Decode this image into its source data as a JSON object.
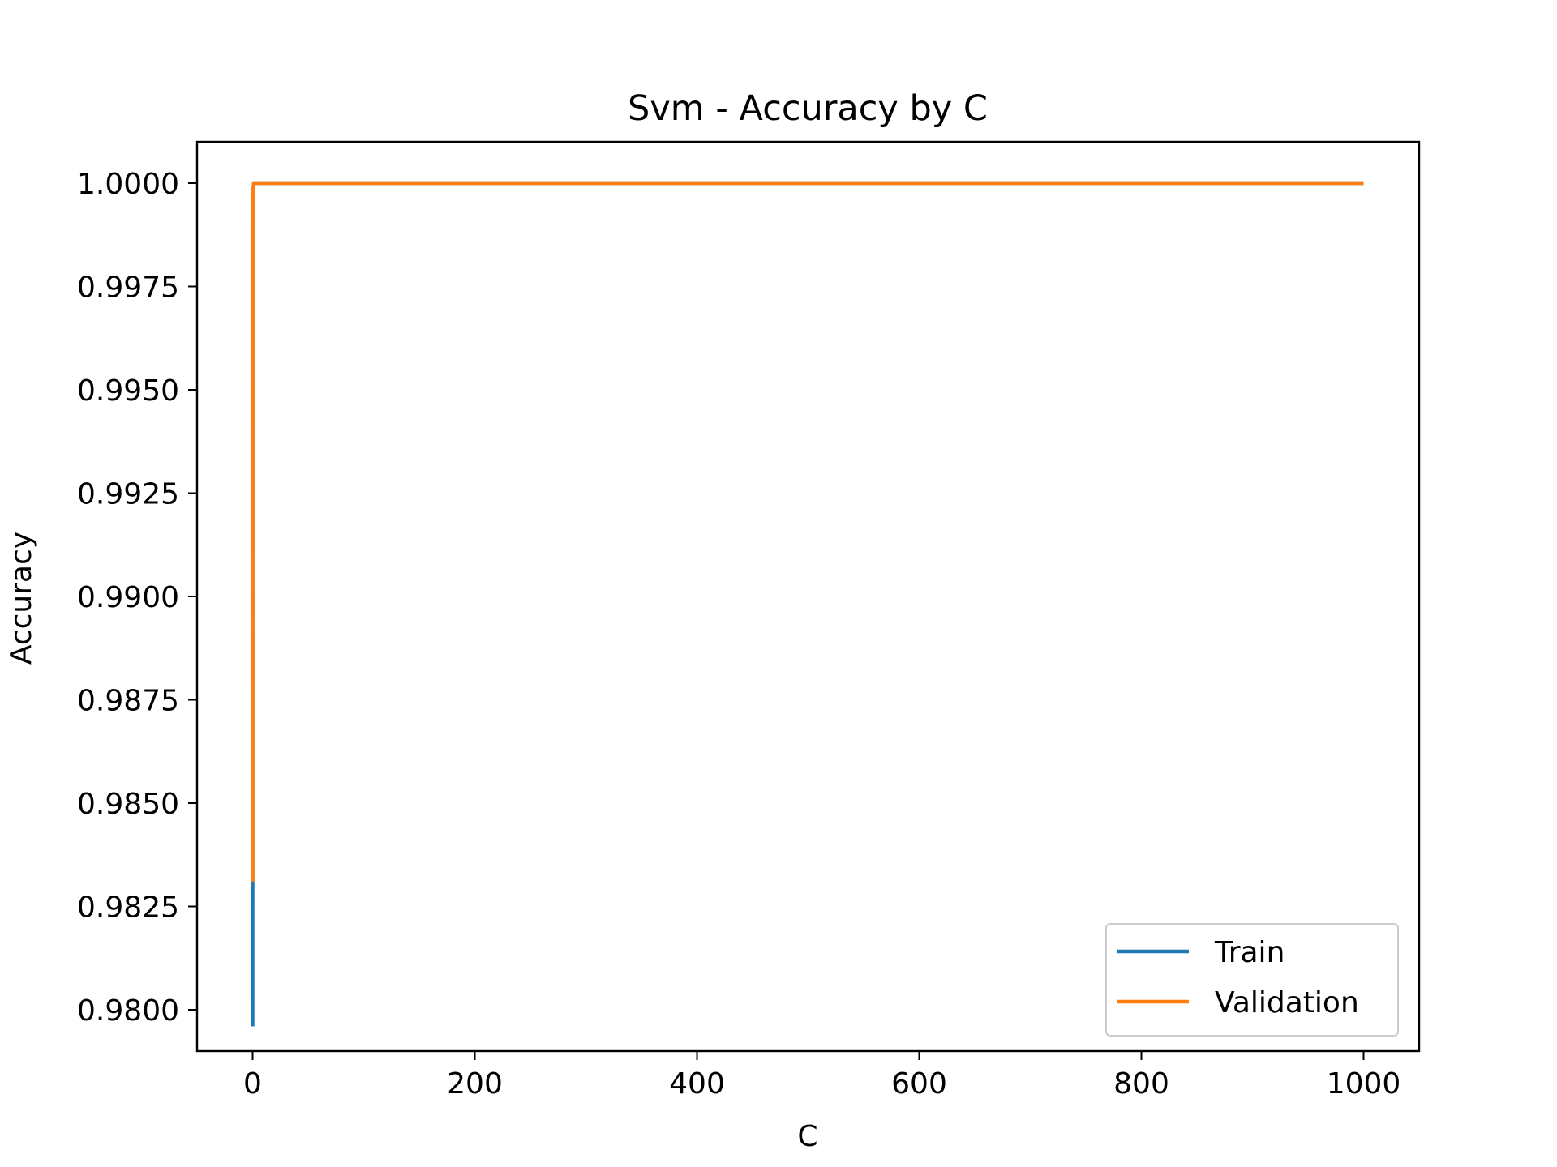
{
  "chart_data": {
    "type": "line",
    "title": "Svm - Accuracy by C",
    "xlabel": "C",
    "ylabel": "Accuracy",
    "xlim": [
      -50,
      1050
    ],
    "ylim": [
      0.979,
      1.001
    ],
    "xticks": [
      0,
      200,
      400,
      600,
      800,
      1000
    ],
    "xtick_labels": [
      "0",
      "200",
      "400",
      "600",
      "800",
      "1000"
    ],
    "yticks": [
      0.98,
      0.9825,
      0.985,
      0.9875,
      0.99,
      0.9925,
      0.995,
      0.9975,
      1.0
    ],
    "ytick_labels": [
      "0.9800",
      "0.9825",
      "0.9850",
      "0.9875",
      "0.9900",
      "0.9925",
      "0.9950",
      "0.9975",
      "1.0000"
    ],
    "grid": false,
    "legend_position": "lower right",
    "series": [
      {
        "name": "Train",
        "color": "#1f77b4",
        "x": [
          0.001,
          0.01,
          0.05,
          0.1,
          0.5,
          1,
          2,
          5,
          10,
          100,
          1000
        ],
        "y": [
          0.9796,
          0.9831,
          0.999,
          0.9995,
          0.9998,
          1.0,
          1.0,
          1.0,
          1.0,
          1.0,
          1.0
        ]
      },
      {
        "name": "Validation",
        "color": "#ff7f0e",
        "x": [
          0.01,
          0.05,
          0.1,
          0.5,
          1,
          2,
          5,
          10,
          100,
          1000
        ],
        "y": [
          0.9831,
          0.999,
          0.9995,
          0.9998,
          1.0,
          1.0,
          1.0,
          1.0,
          1.0,
          1.0
        ]
      }
    ]
  }
}
